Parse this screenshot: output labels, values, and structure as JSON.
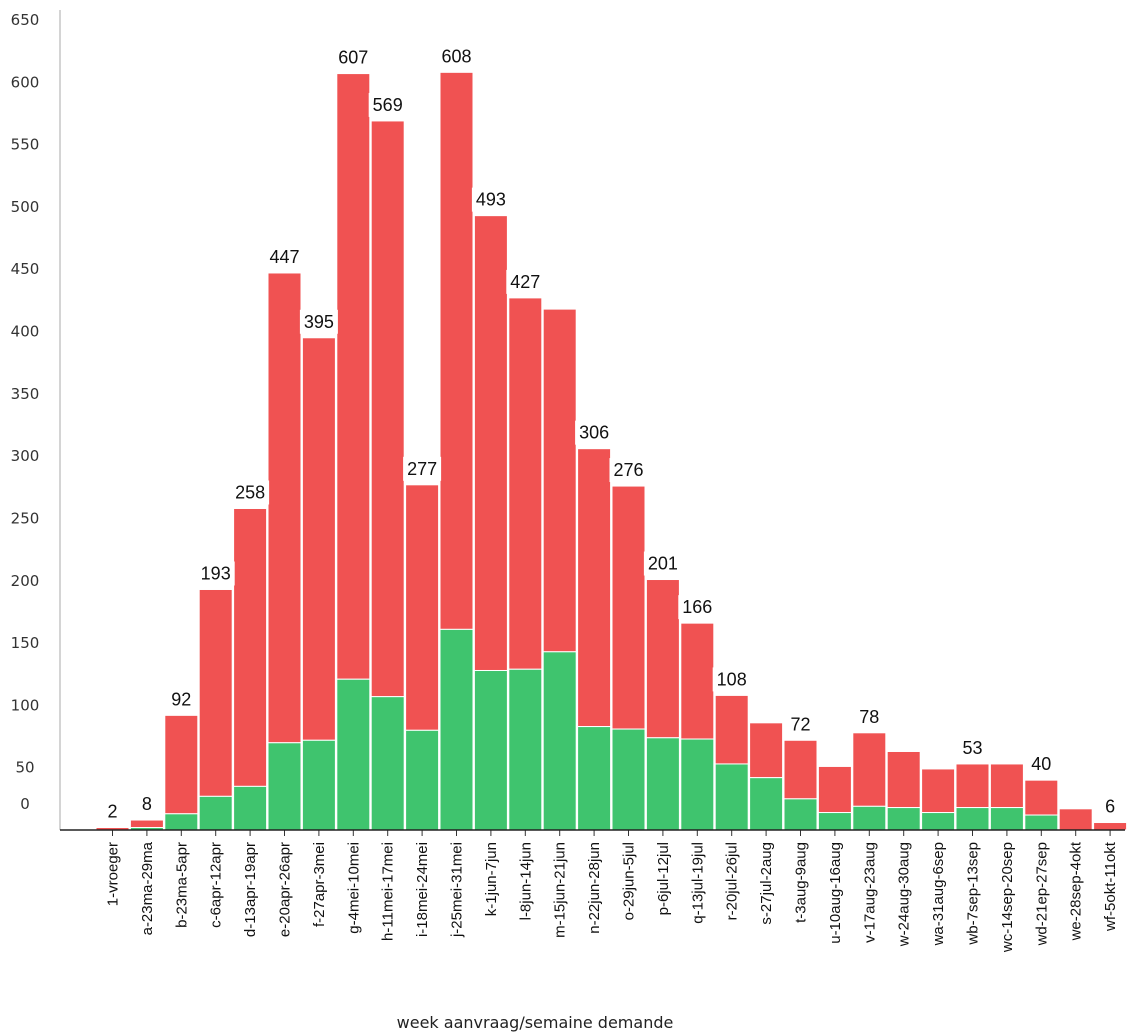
{
  "chart_data": {
    "type": "bar",
    "stacked": true,
    "xlabel": "week aanvraag/semaine demande",
    "ylabel": "",
    "ylim": [
      0,
      650
    ],
    "yticks": [
      0,
      50,
      100,
      150,
      200,
      250,
      300,
      350,
      400,
      450,
      500,
      550,
      600,
      650
    ],
    "grid": false,
    "colors": {
      "upper": "#f05252",
      "lower": "#3fc46e"
    },
    "categories": [
      "1-vroeger",
      "a-23ma-29ma",
      "b-23ma-5apr",
      "c-6apr-12apr",
      "d-13apr-19apr",
      "e-20apr-26apr",
      "f-27apr-3mei",
      "g-4mei-10mei",
      "h-11mei-17mei",
      "i-18mei-24mei",
      "j-25mei-31mei",
      "k-1jun-7jun",
      "l-8jun-14jun",
      "m-15jun-21jun",
      "n-22jun-28jun",
      "o-29jun-5jul",
      "p-6jul-12jul",
      "q-13jul-19jul",
      "r-20jul-26jul",
      "s-27jul-2aug",
      "t-3aug-9aug",
      "u-10aug-16aug",
      "v-17aug-23aug",
      "w-24aug-30aug",
      "wa-31aug-6sep",
      "wb-7sep-13sep",
      "wc-14sep-20sep",
      "wd-21ep-27sep",
      "we-28sep-4okt",
      "wf-5okt-11okt"
    ],
    "totals": [
      2,
      8,
      92,
      193,
      258,
      447,
      395,
      607,
      569,
      277,
      608,
      493,
      427,
      418,
      306,
      276,
      201,
      166,
      108,
      86,
      72,
      51,
      78,
      63,
      49,
      53,
      53,
      40,
      17,
      6
    ],
    "data_labels": [
      "2",
      "8",
      "92",
      "193",
      "258",
      "447",
      "395",
      "607",
      "569",
      "277",
      "608",
      "493",
      "427",
      "",
      "306",
      "276",
      "201",
      "166",
      "108",
      "",
      "72",
      "",
      "78",
      "",
      "",
      "53",
      "",
      "40",
      "",
      "6"
    ],
    "series": [
      {
        "values": [
          0,
          2,
          13,
          27,
          35,
          70,
          72,
          121,
          107,
          80,
          161,
          128,
          129,
          143,
          83,
          81,
          74,
          73,
          53,
          42,
          25,
          14,
          19,
          18,
          14,
          18,
          18,
          12,
          0,
          0
        ]
      },
      {
        "values": [
          2,
          6,
          79,
          166,
          223,
          377,
          323,
          486,
          462,
          197,
          447,
          365,
          298,
          275,
          223,
          195,
          127,
          93,
          55,
          44,
          47,
          37,
          59,
          45,
          35,
          35,
          35,
          28,
          17,
          6
        ]
      }
    ]
  }
}
